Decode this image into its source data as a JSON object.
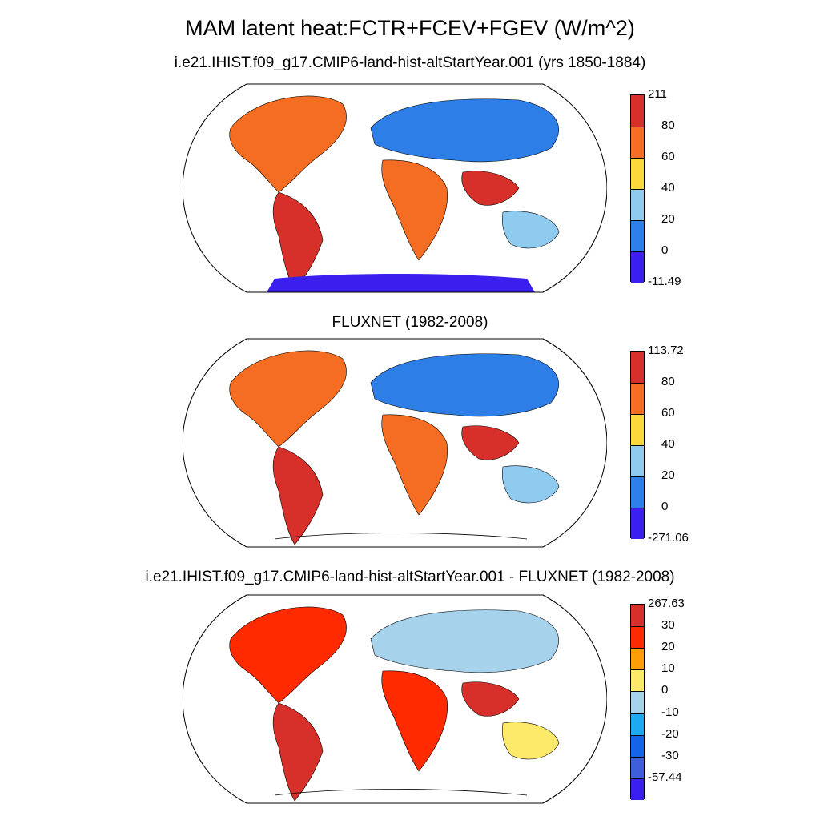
{
  "title": "MAM latent heat:FCTR+FCEV+FGEV (W/m^2)",
  "panels": [
    {
      "title": "i.e21.IHIST.f09_g17.CMIP6-land-hist-altStartYear.001 (yrs 1850-1884)",
      "colorbar": {
        "labels": [
          "211",
          "80",
          "60",
          "40",
          "20",
          "0",
          "-11.49"
        ],
        "colors": [
          "#d7302a",
          "#f46d22",
          "#fbd83c",
          "#8ecbee",
          "#2e7ee8",
          "#3b1fee"
        ]
      }
    },
    {
      "title": "FLUXNET (1982-2008)",
      "colorbar": {
        "labels": [
          "113.72",
          "80",
          "60",
          "40",
          "20",
          "0",
          "-271.06"
        ],
        "colors": [
          "#d7302a",
          "#f46d22",
          "#fbd83c",
          "#8ecbee",
          "#2e7ee8",
          "#3b1fee"
        ]
      }
    },
    {
      "title": "i.e21.IHIST.f09_g17.CMIP6-land-hist-altStartYear.001 - FLUXNET (1982-2008)",
      "colorbar": {
        "labels": [
          "267.63",
          "30",
          "20",
          "10",
          "0",
          "-10",
          "-20",
          "-30",
          "-57.44"
        ],
        "colors": [
          "#d7302a",
          "#ff2a00",
          "#fd9d0a",
          "#fde96a",
          "#a6d2ec",
          "#1ea9f2",
          "#1464ea",
          "#3f5fd8",
          "#3b1fee"
        ]
      }
    }
  ]
}
